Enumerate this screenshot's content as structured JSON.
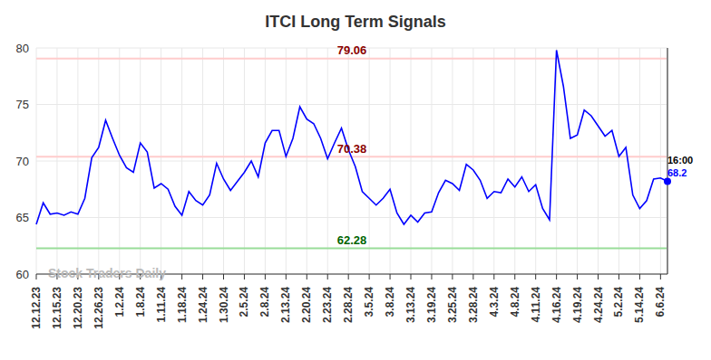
{
  "chart_data": {
    "type": "line",
    "title": "ITCI Long Term Signals",
    "watermark": "Stock Traders Daily",
    "last_label": "16:00",
    "categories": [
      "12.12.23",
      null,
      null,
      "12.15.23",
      null,
      null,
      "12.20.23",
      null,
      null,
      "12.26.23",
      null,
      null,
      "1.2.24",
      null,
      null,
      "1.8.24",
      null,
      null,
      "1.11.24",
      null,
      null,
      "1.18.24",
      null,
      null,
      "1.24.24",
      null,
      null,
      "1.30.24",
      null,
      null,
      "2.5.24",
      null,
      null,
      "2.8.24",
      null,
      null,
      "2.13.24",
      null,
      null,
      "2.20.24",
      null,
      null,
      "2.23.24",
      null,
      null,
      "2.28.24",
      null,
      null,
      "3.5.24",
      null,
      null,
      "3.8.24",
      null,
      null,
      "3.13.24",
      null,
      null,
      "3.19.24",
      null,
      null,
      "3.25.24",
      null,
      null,
      "3.28.24",
      null,
      null,
      "4.3.24",
      null,
      null,
      "4.8.24",
      null,
      null,
      "4.11.24",
      null,
      null,
      "4.16.24",
      null,
      null,
      "4.19.24",
      null,
      null,
      "4.24.24",
      null,
      null,
      "5.2.24",
      null,
      null,
      "5.14.24",
      null,
      null,
      "6.6.24",
      null
    ],
    "values": [
      64.4,
      66.3,
      65.3,
      65.4,
      65.2,
      65.5,
      65.3,
      66.7,
      70.3,
      71.2,
      73.6,
      72.0,
      70.5,
      69.4,
      69.0,
      71.6,
      70.8,
      67.6,
      68.0,
      67.5,
      66.0,
      65.2,
      67.3,
      66.5,
      66.1,
      67.0,
      69.8,
      68.4,
      67.4,
      68.2,
      69.0,
      70.0,
      68.6,
      71.6,
      72.7,
      72.7,
      70.4,
      72.0,
      74.8,
      73.7,
      73.3,
      72.0,
      70.2,
      71.6,
      72.9,
      71.0,
      69.5,
      67.3,
      66.7,
      66.1,
      66.7,
      67.5,
      65.4,
      64.4,
      65.2,
      64.6,
      65.4,
      65.5,
      67.2,
      68.3,
      68.0,
      67.4,
      69.7,
      69.2,
      68.3,
      66.7,
      67.3,
      67.2,
      68.4,
      67.7,
      68.6,
      67.3,
      67.9,
      65.8,
      64.8,
      79.8,
      76.6,
      72.0,
      72.3,
      74.5,
      74.0,
      73.1,
      72.2,
      72.7,
      70.4,
      71.2,
      67.0,
      65.8,
      66.5,
      68.4,
      68.5,
      68.2
    ],
    "color": "#0000ff",
    "ylim": [
      60,
      80
    ],
    "yticks": [
      60,
      65,
      70,
      75,
      80
    ],
    "grid": true,
    "reference_lines": [
      {
        "value": 79.06,
        "color": "#8b0000",
        "line_color": "#ffcccc"
      },
      {
        "value": 70.38,
        "color": "#8b0000",
        "line_color": "#ffcccc"
      },
      {
        "value": 62.28,
        "color": "#006400",
        "line_color": "#99dd99"
      }
    ]
  }
}
